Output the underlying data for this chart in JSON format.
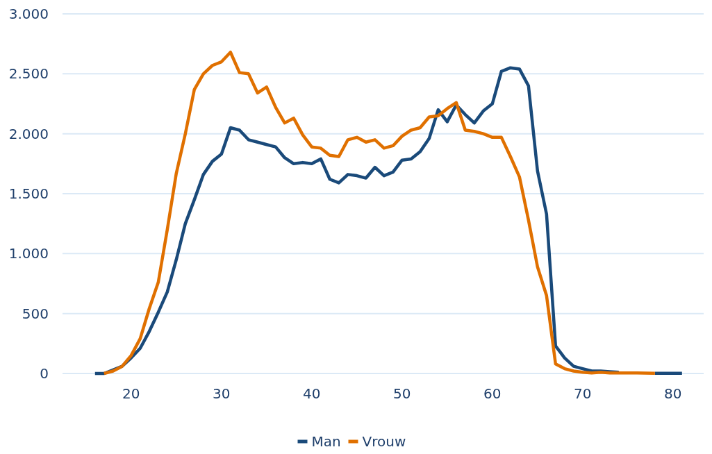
{
  "chart_data": {
    "type": "line",
    "xlim": [
      12.4,
      83.4
    ],
    "xticks": [
      20,
      30,
      40,
      50,
      60,
      70,
      80
    ],
    "ylim": [
      0,
      3000
    ],
    "yticks": [
      {
        "value": 0,
        "label": "0"
      },
      {
        "value": 500,
        "label": "500"
      },
      {
        "value": 1000,
        "label": "1.000"
      },
      {
        "value": 1500,
        "label": "1.500"
      },
      {
        "value": 2000,
        "label": "2.000"
      },
      {
        "value": 2500,
        "label": "2.500"
      },
      {
        "value": 3000,
        "label": "3.000"
      }
    ],
    "grid": "y",
    "legend": "bottom",
    "line_style": "solid",
    "marker": "none",
    "series": [
      {
        "name": "Man",
        "color": "#1a4a7a",
        "x": [
          16,
          17,
          18,
          19,
          20,
          21,
          22,
          23,
          24,
          25,
          26,
          27,
          28,
          29,
          30,
          31,
          32,
          33,
          34,
          35,
          36,
          37,
          38,
          39,
          40,
          41,
          42,
          43,
          44,
          45,
          46,
          47,
          48,
          49,
          50,
          51,
          52,
          53,
          54,
          55,
          56,
          57,
          58,
          59,
          60,
          61,
          62,
          63,
          64,
          65,
          66,
          67,
          68,
          69,
          70,
          71,
          72,
          73,
          74,
          75,
          76,
          77,
          78,
          79,
          80,
          81
        ],
        "values": [
          0,
          0,
          30,
          60,
          130,
          210,
          350,
          510,
          680,
          950,
          1250,
          1450,
          1660,
          1770,
          1830,
          2050,
          2030,
          1950,
          1930,
          1910,
          1890,
          1800,
          1750,
          1760,
          1750,
          1790,
          1620,
          1590,
          1660,
          1650,
          1630,
          1720,
          1650,
          1680,
          1780,
          1790,
          1850,
          1960,
          2200,
          2100,
          2240,
          2160,
          2090,
          2190,
          2250,
          2520,
          2550,
          2540,
          2400,
          1690,
          1330,
          230,
          130,
          60,
          40,
          20,
          20,
          15,
          10,
          null,
          null,
          null,
          2,
          2,
          1,
          1
        ]
      },
      {
        "name": "Vrouw",
        "color": "#e07000",
        "x": [
          17,
          18,
          19,
          20,
          21,
          22,
          23,
          24,
          25,
          26,
          27,
          28,
          29,
          30,
          31,
          32,
          33,
          34,
          35,
          36,
          37,
          38,
          39,
          40,
          41,
          42,
          43,
          44,
          45,
          46,
          47,
          48,
          49,
          50,
          51,
          52,
          53,
          54,
          55,
          56,
          57,
          58,
          59,
          60,
          61,
          62,
          63,
          64,
          65,
          66,
          67,
          68,
          69,
          70,
          71,
          72,
          73,
          74,
          75,
          76,
          77,
          78
        ],
        "values": [
          0,
          20,
          60,
          150,
          290,
          540,
          760,
          1200,
          1670,
          2000,
          2370,
          2500,
          2570,
          2600,
          2680,
          2510,
          2500,
          2340,
          2390,
          2220,
          2090,
          2130,
          1990,
          1890,
          1880,
          1820,
          1810,
          1950,
          1970,
          1930,
          1950,
          1880,
          1900,
          1980,
          2030,
          2050,
          2140,
          2150,
          2210,
          2260,
          2030,
          2020,
          2000,
          1970,
          1970,
          1810,
          1640,
          1280,
          890,
          650,
          80,
          40,
          20,
          10,
          5,
          10,
          5,
          5,
          5,
          5,
          3,
          2
        ]
      }
    ]
  }
}
